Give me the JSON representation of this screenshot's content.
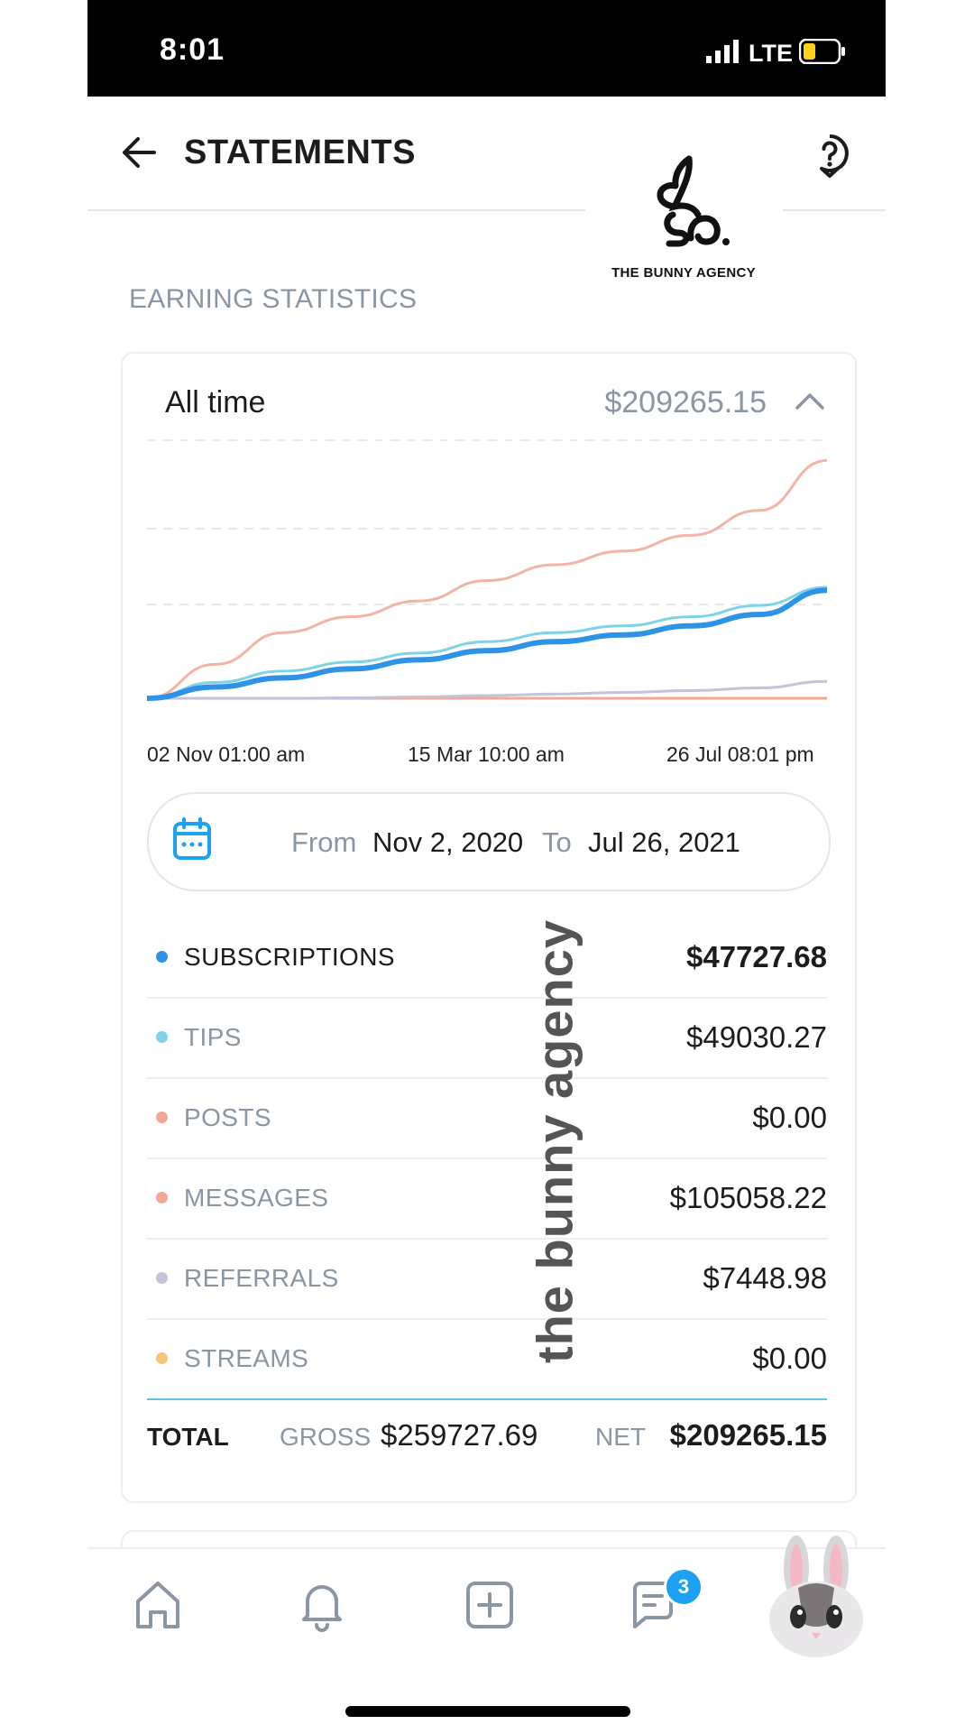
{
  "status_bar": {
    "time": "8:01",
    "network": "LTE"
  },
  "header": {
    "title": "STATEMENTS"
  },
  "watermark_logo": {
    "text": "THE BUNNY AGENCY"
  },
  "watermark_vertical": "the bunny agency",
  "section_title": "EARNING STATISTICS",
  "summary": {
    "period": "All time",
    "amount": "$209265.15"
  },
  "chart_data": {
    "type": "line",
    "x_ticks": [
      "02 Nov 01:00 am",
      "15 Mar 10:00 am",
      "26 Jul 08:01 pm"
    ],
    "x": [
      0,
      0.1,
      0.2,
      0.3,
      0.4,
      0.5,
      0.6,
      0.7,
      0.8,
      0.9,
      1.0
    ],
    "ylim": [
      0,
      110000
    ],
    "grid": "horizontal dashed",
    "series": [
      {
        "name": "SUBSCRIPTIONS",
        "color": "#2e93e6",
        "values": [
          0,
          5000,
          9000,
          13000,
          17000,
          21000,
          25000,
          28000,
          32000,
          37000,
          47728
        ]
      },
      {
        "name": "TIPS",
        "color": "#7ed3e6",
        "values": [
          0,
          7000,
          12000,
          16000,
          20000,
          25000,
          29000,
          32000,
          36000,
          41000,
          49030
        ]
      },
      {
        "name": "POSTS",
        "color": "#f3a895",
        "values": [
          0,
          0,
          0,
          0,
          0,
          0,
          0,
          0,
          0,
          0,
          0
        ]
      },
      {
        "name": "MESSAGES",
        "color": "#f3b4a3",
        "values": [
          0,
          15000,
          29000,
          36000,
          43000,
          52000,
          59000,
          65000,
          72000,
          83000,
          105058
        ]
      },
      {
        "name": "REFERRALS",
        "color": "#c3c3d9",
        "values": [
          0,
          0,
          0,
          200,
          600,
          1200,
          1900,
          2600,
          3400,
          4600,
          7449
        ]
      }
    ]
  },
  "date_range": {
    "from_label": "From",
    "from_value": "Nov 2, 2020",
    "to_label": "To",
    "to_value": "Jul 26, 2021"
  },
  "breakdown": [
    {
      "label": "SUBSCRIPTIONS",
      "value": "$47727.68",
      "color": "#2e93e6"
    },
    {
      "label": "TIPS",
      "value": "$49030.27",
      "color": "#7ed3e6"
    },
    {
      "label": "POSTS",
      "value": "$0.00",
      "color": "#f3a895"
    },
    {
      "label": "MESSAGES",
      "value": "$105058.22",
      "color": "#f3a895"
    },
    {
      "label": "REFERRALS",
      "value": "$7448.98",
      "color": "#c3c3d9"
    },
    {
      "label": "STREAMS",
      "value": "$0.00",
      "color": "#f8c67a"
    }
  ],
  "totals": {
    "label": "TOTAL",
    "gross_label": "GROSS",
    "gross_value": "$259727.69",
    "net_label": "NET",
    "net_value": "$209265.15"
  },
  "nav": {
    "items": [
      "home-icon",
      "bell-icon",
      "add-icon",
      "messages-icon",
      "avatar"
    ],
    "messages_badge": "3"
  }
}
